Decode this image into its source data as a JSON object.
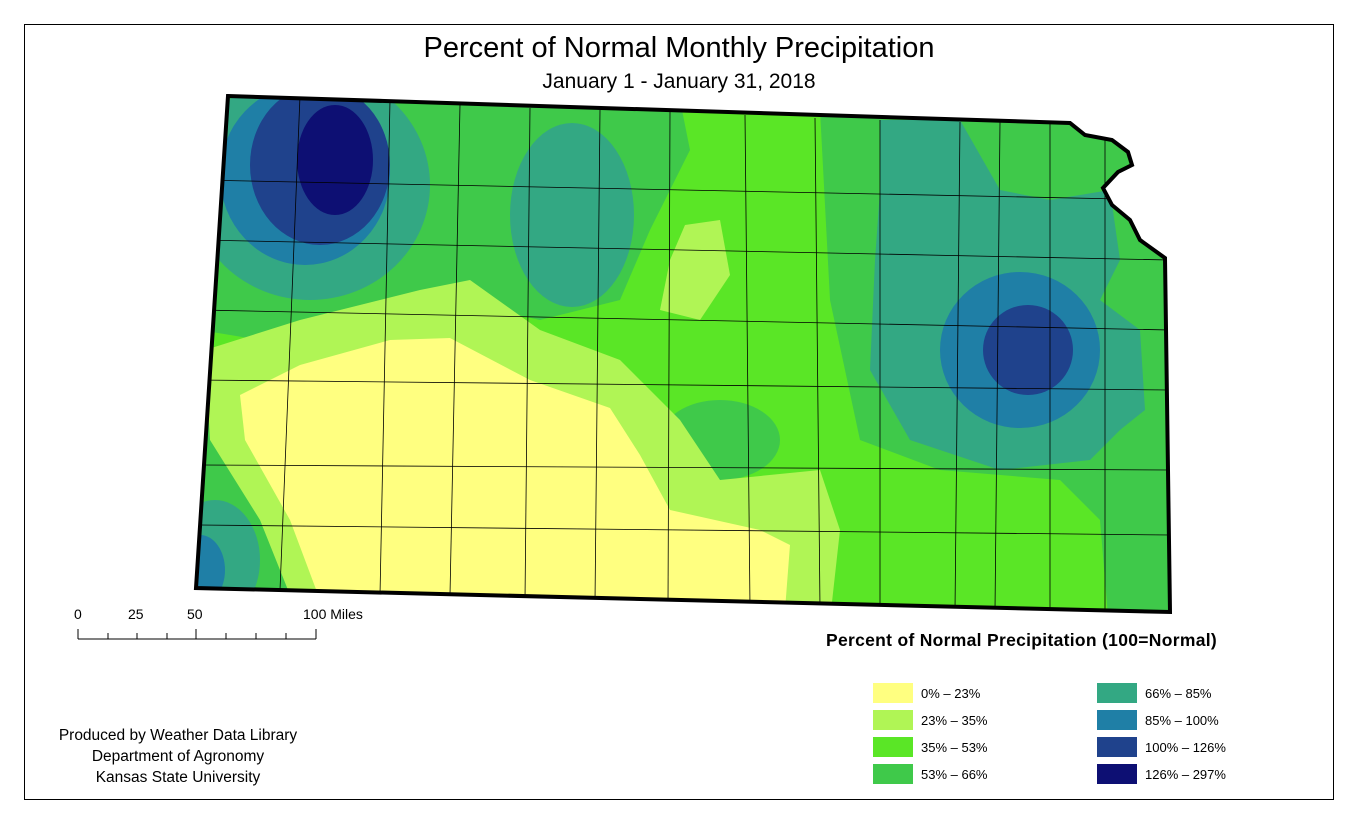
{
  "title": "Percent of Normal Monthly Precipitation",
  "subtitle": "January 1 - January 31, 2018",
  "scale_bar": {
    "labels": [
      "0",
      "25",
      "50",
      "100 Miles"
    ]
  },
  "credits": [
    "Produced by Weather Data Library",
    "Department of Agronomy",
    "Kansas State University"
  ],
  "legend": {
    "title": "Percent of Normal Precipitation (100=Normal)",
    "items": [
      {
        "label": "0% – 23%",
        "color": "#ffff80"
      },
      {
        "label": "23% – 35%",
        "color": "#b0f555"
      },
      {
        "label": "35% – 53%",
        "color": "#5ae626"
      },
      {
        "label": "53% – 66%",
        "color": "#3fc94a"
      },
      {
        "label": "66% – 85%",
        "color": "#33a883"
      },
      {
        "label": "85% – 100%",
        "color": "#1f7fa6"
      },
      {
        "label": "100% – 126%",
        "color": "#1f428c"
      },
      {
        "label": "126% – 297%",
        "color": "#0d0f73"
      }
    ]
  }
}
